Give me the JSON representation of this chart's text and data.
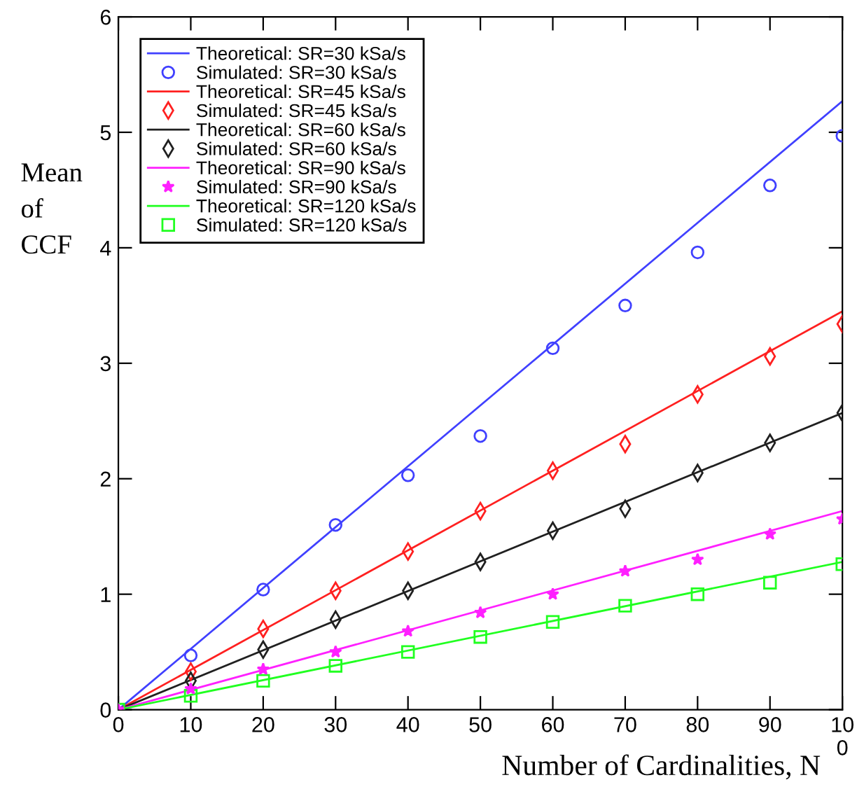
{
  "chart_data": {
    "type": "line",
    "xlabel": "Number of Cardinalities, N",
    "ylabel": "Mean\nof\nCCF",
    "xlim": [
      0,
      100
    ],
    "ylim": [
      0,
      6
    ],
    "xticks": [
      0,
      10,
      20,
      30,
      40,
      50,
      60,
      70,
      80,
      90,
      {
        "value": 100,
        "label": "10\n0"
      }
    ],
    "yticks": [
      0,
      1,
      2,
      3,
      4,
      5,
      6
    ],
    "grid": false,
    "legend": "top left",
    "series": [
      {
        "name": "Theoretical: SR=30 kSa/s",
        "color": "#4040ff",
        "marker": "none",
        "line_style": "solid",
        "x": [
          0,
          100
        ],
        "values": [
          0,
          5.27
        ]
      },
      {
        "name": "Simulated: SR=30 kSa/s",
        "type": "scatter",
        "color": "#4040ff",
        "marker": "circle",
        "x": [
          10,
          20,
          30,
          40,
          50,
          60,
          70,
          80,
          90,
          100
        ],
        "values": [
          0.47,
          1.04,
          1.6,
          2.03,
          2.37,
          3.13,
          3.5,
          3.96,
          4.54,
          4.97
        ]
      },
      {
        "name": "Theoretical: SR=45 kSa/s",
        "color": "#ff2020",
        "marker": "none",
        "line_style": "solid",
        "x": [
          0,
          100
        ],
        "values": [
          0,
          3.45
        ]
      },
      {
        "name": "Simulated: SR=45 kSa/s",
        "type": "scatter",
        "color": "#ff2020",
        "marker": "diamond",
        "x": [
          10,
          20,
          30,
          40,
          50,
          60,
          70,
          80,
          90,
          100
        ],
        "values": [
          0.33,
          0.7,
          1.03,
          1.37,
          1.72,
          2.07,
          2.3,
          2.73,
          3.06,
          3.34
        ]
      },
      {
        "name": "Theoretical: SR=60 kSa/s",
        "color": "#202020",
        "marker": "none",
        "line_style": "solid",
        "x": [
          0,
          100
        ],
        "values": [
          0,
          2.57
        ]
      },
      {
        "name": "Simulated: SR=60 kSa/s",
        "type": "scatter",
        "color": "#202020",
        "marker": "diamond",
        "x": [
          10,
          20,
          30,
          40,
          50,
          60,
          70,
          80,
          90,
          100
        ],
        "values": [
          0.25,
          0.52,
          0.78,
          1.03,
          1.28,
          1.55,
          1.74,
          2.05,
          2.31,
          2.57
        ]
      },
      {
        "name": "Theoretical: SR=90 kSa/s",
        "color": "#ff20ff",
        "marker": "none",
        "line_style": "solid",
        "x": [
          0,
          100
        ],
        "values": [
          0,
          1.72
        ]
      },
      {
        "name": "Simulated: SR=90 kSa/s",
        "type": "scatter",
        "color": "#ff20ff",
        "marker": "star",
        "x": [
          0,
          10,
          20,
          30,
          40,
          50,
          60,
          70,
          80,
          90,
          100
        ],
        "values": [
          0,
          0.18,
          0.35,
          0.5,
          0.68,
          0.84,
          1.0,
          1.2,
          1.3,
          1.52,
          1.65
        ]
      },
      {
        "name": "Theoretical: SR=120 kSa/s",
        "color": "#20ff20",
        "marker": "none",
        "line_style": "solid",
        "x": [
          0,
          100
        ],
        "values": [
          0,
          1.28
        ]
      },
      {
        "name": "Simulated: SR=120 kSa/s",
        "type": "scatter",
        "color": "#20ff20",
        "marker": "square",
        "x": [
          0,
          10,
          20,
          30,
          40,
          50,
          60,
          70,
          80,
          90,
          100
        ],
        "values": [
          0,
          0.12,
          0.25,
          0.38,
          0.5,
          0.63,
          0.76,
          0.9,
          1.0,
          1.1,
          1.26
        ]
      }
    ]
  }
}
